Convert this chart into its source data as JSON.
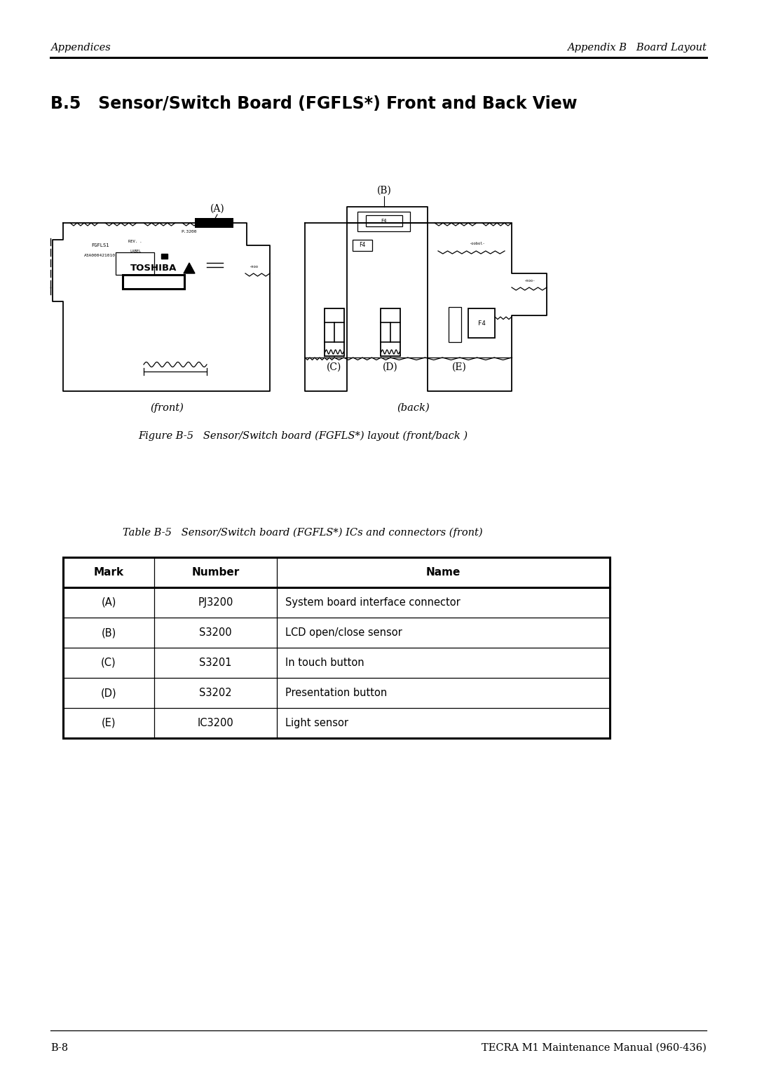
{
  "bg_color": "#ffffff",
  "page_title": "B.5   Sensor/Switch Board (FGFLS*) Front and Back View",
  "header_left": "Appendices",
  "header_right": "Appendix B   Board Layout",
  "footer_left": "B-8",
  "footer_right": "TECRA M1 Maintenance Manual (960-436)",
  "figure_caption": "Figure B-5   Sensor/Switch board (FGFLS*) layout (front/back )",
  "table_caption": "Table B-5   Sensor/Switch board (FGFLS*) ICs and connectors (front)",
  "table_headers": [
    "Mark",
    "Number",
    "Name"
  ],
  "table_rows": [
    [
      "(A)",
      "PJ3200",
      "System board interface connector"
    ],
    [
      "(B)",
      "S3200",
      "LCD open/close sensor"
    ],
    [
      "(C)",
      "S3201",
      "In touch button"
    ],
    [
      "(D)",
      "S3202",
      "Presentation button"
    ],
    [
      "(E)",
      "IC3200",
      "Light sensor"
    ]
  ],
  "front_label": "(front)",
  "back_label": "(back)",
  "label_A": "(A)",
  "label_B": "(B)",
  "label_C": "(C)",
  "label_D": "(D)",
  "label_E": "(E)"
}
